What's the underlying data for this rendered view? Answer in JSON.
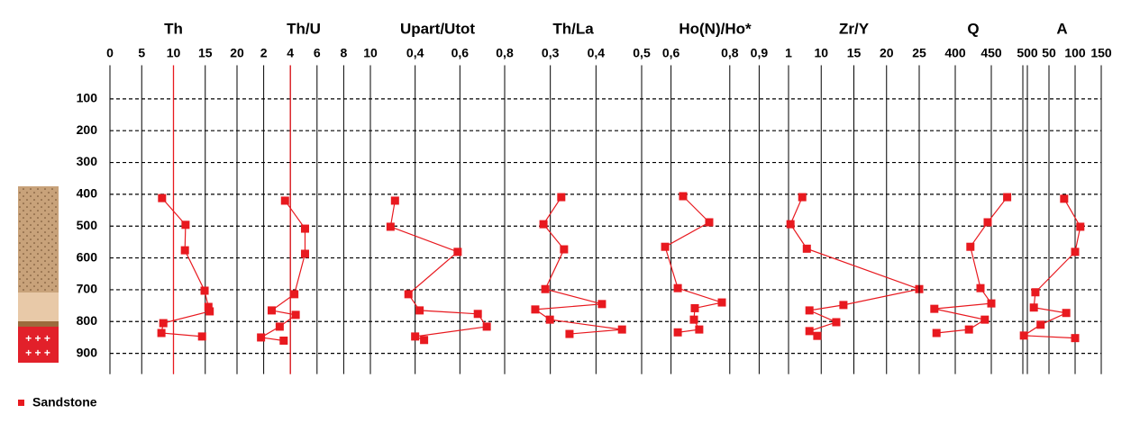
{
  "chart_data": {
    "type": "line",
    "ylim": [
      0,
      965
    ],
    "yticks": [
      100,
      200,
      300,
      400,
      500,
      600,
      700,
      800,
      900
    ],
    "grid": true,
    "color": "#e8191f",
    "ref_color": "#e8191f",
    "legend": {
      "label": "Sandstone",
      "color": "#e8191f"
    },
    "panels": [
      {
        "title": "Th",
        "xlim": [
          0,
          20
        ],
        "xticks": [
          0,
          5,
          10,
          15,
          20
        ],
        "ref": 10,
        "depth": [
          412,
          496,
          576,
          703,
          754,
          768,
          805,
          836,
          847
        ],
        "values": [
          8.2,
          11.9,
          11.8,
          14.9,
          15.5,
          15.7,
          8.4,
          8.1,
          14.5
        ]
      },
      {
        "title": "Th/U",
        "xlim": [
          0,
          10
        ],
        "xticks": [
          2,
          4,
          6,
          8,
          10
        ],
        "ref": 4,
        "depth": [
          420,
          508,
          587,
          714,
          765,
          779,
          816,
          850,
          860
        ],
        "values": [
          3.6,
          5.1,
          5.1,
          4.3,
          2.6,
          4.4,
          3.2,
          1.8,
          3.5
        ]
      },
      {
        "title": "Upart/Utot",
        "xlim": [
          0.2,
          0.8
        ],
        "xticks": [
          {
            "value": 0.4,
            "label": "0,4"
          },
          {
            "value": 0.6,
            "label": "0,6"
          },
          {
            "value": 0.8,
            "label": "0,8"
          }
        ],
        "depth": [
          420,
          502,
          581,
          714,
          765,
          776,
          816,
          847,
          858
        ],
        "values": [
          0.31,
          0.29,
          0.59,
          0.37,
          0.42,
          0.68,
          0.72,
          0.4,
          0.44
        ]
      },
      {
        "title": "Th/La",
        "xlim": [
          0.2,
          0.5
        ],
        "xticks": [
          {
            "value": 0.3,
            "label": "0,3"
          },
          {
            "value": 0.4,
            "label": "0,4"
          },
          {
            "value": 0.5,
            "label": "0,5"
          }
        ],
        "depth": [
          409,
          494,
          573,
          698,
          745,
          762,
          794,
          825,
          839
        ],
        "values": [
          0.324,
          0.285,
          0.33,
          0.289,
          0.413,
          0.267,
          0.299,
          0.457,
          0.342
        ]
      },
      {
        "title": "Ho(N)/Ho*",
        "xlim": [
          0.5,
          1
        ],
        "xticks": [
          {
            "value": 0.6,
            "label": "0,6"
          },
          {
            "value": 0.8,
            "label": "0,8"
          },
          {
            "value": 0.9,
            "label": "0,9"
          },
          1
        ],
        "depth": [
          406,
          488,
          565,
          695,
          740,
          758,
          794,
          825,
          834
        ],
        "values": [
          0.641,
          0.73,
          0.58,
          0.623,
          0.773,
          0.681,
          0.678,
          0.696,
          0.623
        ]
      },
      {
        "title": "Zr/Y",
        "xlim": [
          5,
          25
        ],
        "xticks": [
          10,
          15,
          20,
          25
        ],
        "depth": [
          409,
          494,
          571,
          698,
          748,
          765,
          802,
          830,
          845
        ],
        "values": [
          7.1,
          5.3,
          7.8,
          25,
          13.4,
          8.2,
          12.3,
          8.2,
          9.4
        ]
      },
      {
        "title": "Q",
        "xlim": [
          350,
          500
        ],
        "xticks": [
          400,
          450,
          500
        ],
        "depth": [
          409,
          488,
          565,
          695,
          743,
          760,
          794,
          825,
          836
        ],
        "values": [
          472,
          445,
          421,
          435,
          450,
          371,
          441,
          419,
          374
        ]
      },
      {
        "title": "A",
        "xlim": [
          0,
          150
        ],
        "xticks": [
          50,
          100,
          150
        ],
        "depth": [
          414,
          502,
          581,
          708,
          756,
          773,
          810,
          844,
          852
        ],
        "values": [
          79,
          110,
          100,
          24,
          21,
          83,
          34,
          2,
          100
        ]
      }
    ]
  }
}
